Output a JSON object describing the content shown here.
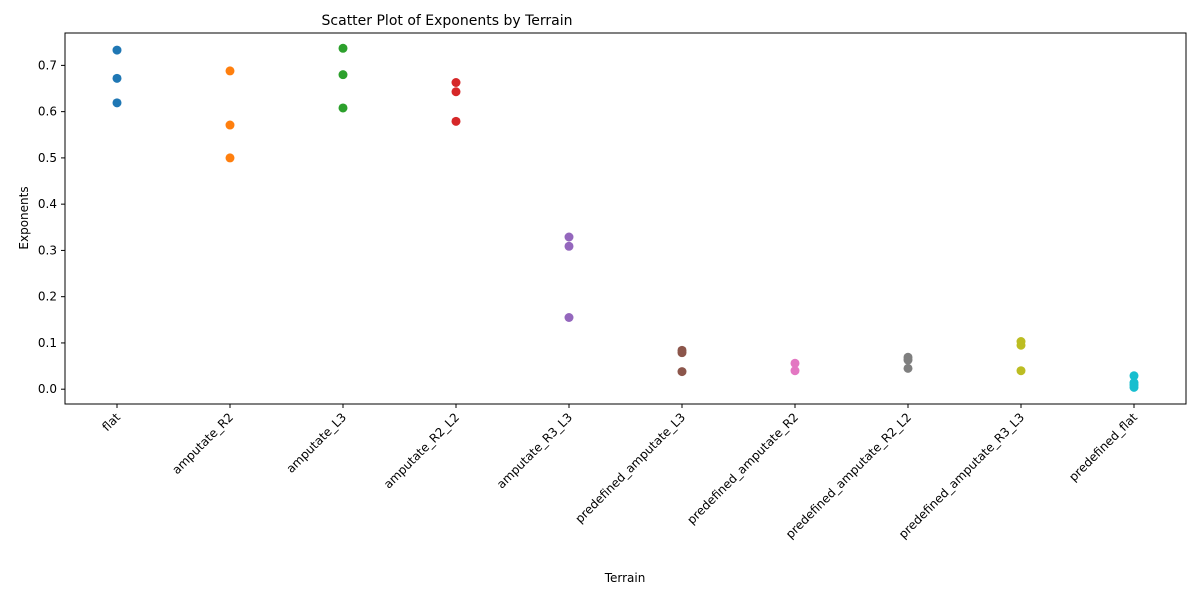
{
  "chart_data": {
    "type": "scatter",
    "title": "Scatter Plot of Exponents by Terrain",
    "xlabel": "Terrain",
    "ylabel": "Exponents",
    "ylim": [
      -0.032,
      0.77
    ],
    "yticks": [
      0.0,
      0.1,
      0.2,
      0.3,
      0.4,
      0.5,
      0.6,
      0.7
    ],
    "ytick_labels": [
      "0.0",
      "0.1",
      "0.2",
      "0.3",
      "0.4",
      "0.5",
      "0.6",
      "0.7"
    ],
    "grid": false,
    "categories": [
      "flat",
      "amputate_R2",
      "amputate_L3",
      "amputate_R2_L2",
      "amputate_R3_L3",
      "predefined_amputate_L3",
      "predefined_amputate_R2",
      "predefined_amputate_R2_L2",
      "predefined_amputate_R3_L3",
      "predefined_flat"
    ],
    "series": [
      {
        "category": "flat",
        "color": "#1f77b4",
        "values": [
          0.733,
          0.672,
          0.619
        ]
      },
      {
        "category": "amputate_R2",
        "color": "#ff7f0e",
        "values": [
          0.688,
          0.571,
          0.5
        ]
      },
      {
        "category": "amputate_L3",
        "color": "#2ca02c",
        "values": [
          0.737,
          0.68,
          0.608
        ]
      },
      {
        "category": "amputate_R2_L2",
        "color": "#d62728",
        "values": [
          0.663,
          0.643,
          0.579
        ]
      },
      {
        "category": "amputate_R3_L3",
        "color": "#9467bd",
        "values": [
          0.329,
          0.309,
          0.155
        ]
      },
      {
        "category": "predefined_amputate_L3",
        "color": "#8c564b",
        "values": [
          0.084,
          0.079,
          0.038
        ]
      },
      {
        "category": "predefined_amputate_R2",
        "color": "#e377c2",
        "values": [
          0.056,
          0.04
        ]
      },
      {
        "category": "predefined_amputate_R2_L2",
        "color": "#7f7f7f",
        "values": [
          0.069,
          0.063,
          0.045
        ]
      },
      {
        "category": "predefined_amputate_R3_L3",
        "color": "#bcbd22",
        "values": [
          0.103,
          0.095,
          0.04
        ]
      },
      {
        "category": "predefined_flat",
        "color": "#17becf",
        "values": [
          0.029,
          0.014,
          0.009,
          0.004
        ]
      }
    ]
  }
}
